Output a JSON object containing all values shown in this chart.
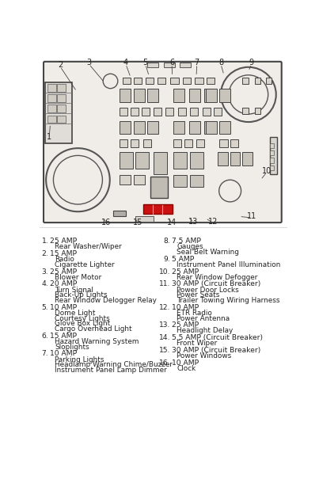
{
  "bg_color": "#ffffff",
  "text_color": "#222222",
  "line_color": "#444444",
  "diagram_facecolor": "#f0ede8",
  "diagram_border": "#555555",
  "fuse_color": "#d8d4cc",
  "relay_color": "#c8c4bc",
  "left_col": [
    {
      "num": "1",
      "amp": "25 AMP",
      "items": [
        "Rear Washer/Wiper"
      ]
    },
    {
      "num": "2",
      "amp": "15 AMP",
      "items": [
        "Radio",
        "Cigarette Lighter"
      ]
    },
    {
      "num": "3",
      "amp": "25 AMP",
      "items": [
        "Blower Motor"
      ]
    },
    {
      "num": "4",
      "amp": "20 AMP",
      "items": [
        "Turn Signal",
        "Back-Up Lights",
        "Rear Window Delogger Relay"
      ]
    },
    {
      "num": "5",
      "amp": "10 AMP",
      "items": [
        "Dome Light",
        "Courtesy Lights",
        "Glove Box Light",
        "Cargo Overhead Light"
      ]
    },
    {
      "num": "6",
      "amp": "15 AMP",
      "items": [
        "Hazard Warning System",
        "Sloplights"
      ]
    },
    {
      "num": "7",
      "amp": "10 AMP",
      "items": [
        "Parking Lights",
        "Headlamp Warning Chime/Buzzer",
        "Instrument Panel Lamp Dimmer"
      ]
    }
  ],
  "right_col": [
    {
      "num": "8",
      "amp": "7.5 AMP",
      "items": [
        "Gauges",
        "Seal Belt Warning"
      ]
    },
    {
      "num": "9",
      "amp": "5 AMP",
      "items": [
        "Instrument Panel Illumination"
      ]
    },
    {
      "num": "10",
      "amp": "25 AMP",
      "items": [
        "Rear Window Defogger"
      ]
    },
    {
      "num": "11",
      "amp": "30 AMP (Circuit Breaker)",
      "items": [
        "Power Door Locks",
        "Power Seats",
        "Trailer Towing Wiring Harness"
      ]
    },
    {
      "num": "12",
      "amp": "10 AMP",
      "items": [
        "ETR Radio",
        "Power Antenna"
      ]
    },
    {
      "num": "13",
      "amp": "25 AMP",
      "items": [
        "Headlight Delay"
      ]
    },
    {
      "num": "14",
      "amp": "5.5 AMP (Circuit Breaker)",
      "items": [
        "Front Wiper"
      ]
    },
    {
      "num": "15",
      "amp": "30 AMP (Circuit Breaker)",
      "items": [
        "Power Windows"
      ]
    },
    {
      "num": "16",
      "amp": "10 AMP",
      "items": [
        "Clock"
      ]
    }
  ],
  "callout_nums": [
    [
      "1",
      15,
      130,
      17,
      108
    ],
    [
      "2",
      33,
      12,
      60,
      55
    ],
    [
      "3",
      80,
      8,
      105,
      40
    ],
    [
      "4",
      140,
      8,
      148,
      32
    ],
    [
      "5",
      172,
      8,
      178,
      30
    ],
    [
      "6",
      215,
      8,
      216,
      30
    ],
    [
      "7",
      256,
      8,
      255,
      30
    ],
    [
      "8",
      295,
      8,
      300,
      28
    ],
    [
      "9",
      345,
      8,
      340,
      22
    ],
    [
      "10",
      370,
      185,
      360,
      200
    ],
    [
      "11",
      345,
      260,
      325,
      260
    ],
    [
      "12",
      282,
      268,
      270,
      263
    ],
    [
      "13",
      250,
      268,
      243,
      260
    ],
    [
      "14",
      215,
      270,
      210,
      262
    ],
    [
      "15",
      160,
      270,
      155,
      262
    ],
    [
      "16",
      108,
      270,
      105,
      262
    ]
  ]
}
